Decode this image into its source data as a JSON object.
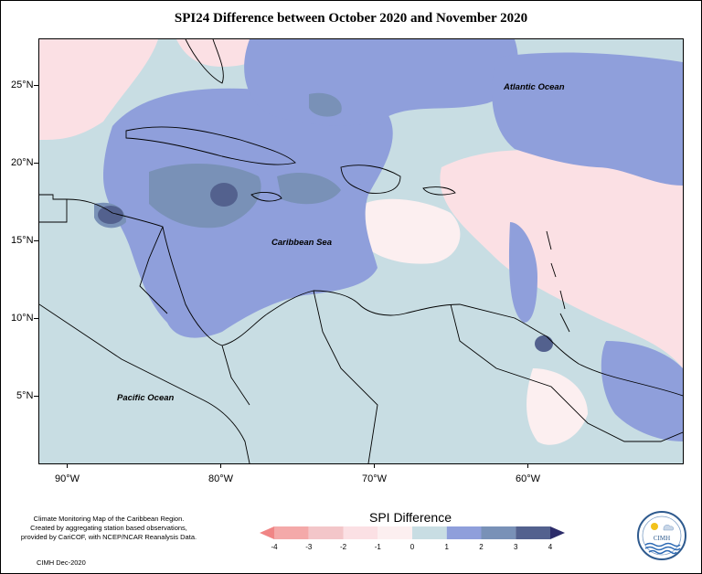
{
  "title": "SPI24 Difference between October 2020 and November 2020",
  "map": {
    "labels": {
      "atlantic": "Atlantic Ocean",
      "caribbean": "Caribbean Sea",
      "pacific": "Pacific Ocean"
    },
    "lat_ticks": [
      "25°N",
      "20°N",
      "15°N",
      "10°N",
      "5°N"
    ],
    "lon_ticks": [
      "90°W",
      "80°W",
      "70°W",
      "60°W"
    ]
  },
  "legend": {
    "title": "SPI Difference",
    "ticks": [
      "-4",
      "-3",
      "-2",
      "-1",
      "0",
      "1",
      "2",
      "3",
      "4"
    ],
    "colors": [
      "#f08585",
      "#f4a9a9",
      "#f3c6c9",
      "#fbe0e4",
      "#fceff0",
      "#c8dde3",
      "#8f9fdb",
      "#7991b7",
      "#53618e",
      "#2c2c6a"
    ]
  },
  "credit": {
    "line1": "Climate Monitoring Map of the Caribbean Region.",
    "line2": "Created by aggregating station based observations,",
    "line3": "provided by CariCOF, with NCEP/NCAR Reanalysis Data.",
    "date": "CIMH Dec-2020"
  },
  "logo": {
    "text": "CIMH"
  }
}
